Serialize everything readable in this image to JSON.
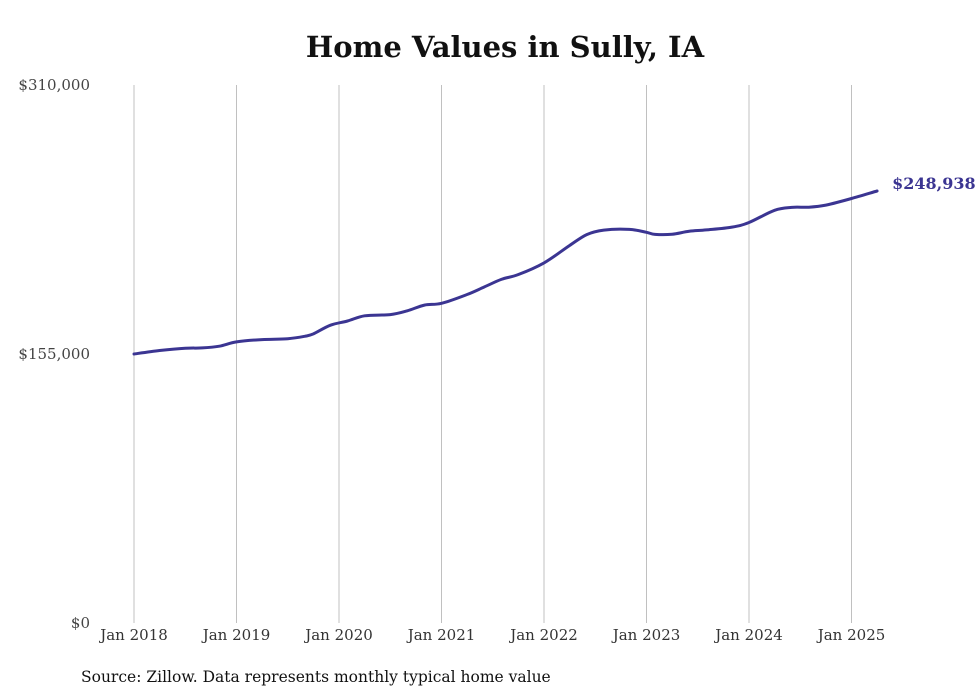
{
  "colors": {
    "line": "#3b3592",
    "grid": "#c0c0c0",
    "text": "#333333"
  },
  "chart_data": {
    "type": "line",
    "title": "Home Values in Sully, IA",
    "xlabel": "",
    "ylabel": "",
    "ylim": [
      0,
      310000
    ],
    "x_ticks": [
      "Jan 2018",
      "Jan 2019",
      "Jan 2020",
      "Jan 2021",
      "Jan 2022",
      "Jan 2023",
      "Jan 2024",
      "Jan 2025"
    ],
    "y_ticks": [
      {
        "value": 0,
        "label": "$0"
      },
      {
        "value": 155000,
        "label": "$155,000"
      },
      {
        "value": 310000,
        "label": "$310,000"
      }
    ],
    "grid": "vertical at year ticks",
    "end_label": "$248,938",
    "series": [
      {
        "x": [
          "2018-01",
          "2018-04",
          "2018-07",
          "2018-09",
          "2018-11",
          "2019-01",
          "2019-04",
          "2019-07",
          "2019-09",
          "2019-10",
          "2019-12",
          "2020-02",
          "2020-04",
          "2020-07",
          "2020-09",
          "2020-11",
          "2021-01",
          "2021-04",
          "2021-06",
          "2021-08",
          "2021-10",
          "2022-01",
          "2022-04",
          "2022-06",
          "2022-08",
          "2022-11",
          "2023-01",
          "2023-02",
          "2023-04",
          "2023-06",
          "2023-08",
          "2023-11",
          "2024-01",
          "2024-04",
          "2024-06",
          "2024-08",
          "2024-10",
          "2025-01",
          "2025-04"
        ],
        "values": [
          155000,
          157000,
          158300,
          158500,
          159500,
          162000,
          163300,
          163800,
          165200,
          166600,
          171600,
          174000,
          177000,
          177700,
          179900,
          183200,
          184200,
          189300,
          193600,
          198000,
          200800,
          207500,
          217500,
          223800,
          226400,
          226800,
          225100,
          223900,
          224000,
          225700,
          226500,
          228100,
          230800,
          237800,
          239500,
          239600,
          240800,
          244600,
          248938
        ]
      }
    ]
  },
  "source_note": "Source: Zillow. Data represents monthly typical home value"
}
